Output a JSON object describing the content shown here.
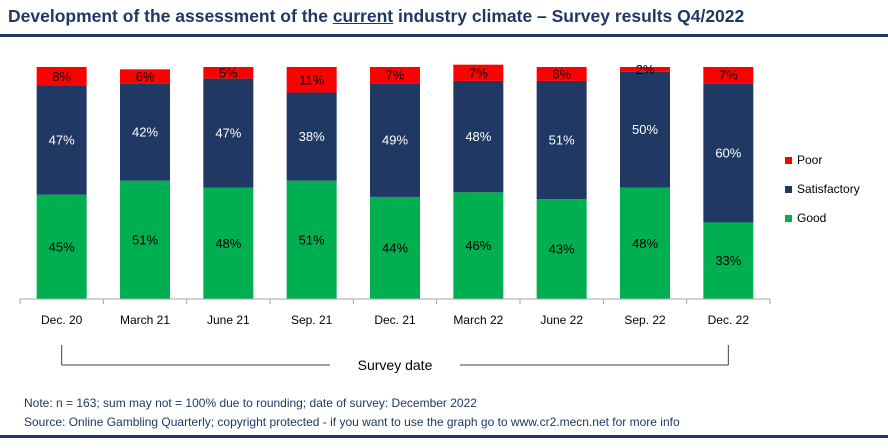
{
  "title": {
    "prefix": "Development of the assessment of the ",
    "underlined": "current",
    "suffix": " industry climate – Survey results Q4/2022"
  },
  "chart_data": {
    "type": "bar",
    "stacked": true,
    "categories": [
      "Dec. 20",
      "March 21",
      "June 21",
      "Sep. 21",
      "Dec. 21",
      "March 22",
      "June 22",
      "Sep. 22",
      "Dec. 22"
    ],
    "series": [
      {
        "name": "Good",
        "color": "#00b050",
        "values": [
          45,
          51,
          48,
          51,
          44,
          46,
          43,
          48,
          33
        ]
      },
      {
        "name": "Satisfactory",
        "color": "#1f3864",
        "values": [
          47,
          42,
          47,
          38,
          49,
          48,
          51,
          50,
          60
        ]
      },
      {
        "name": "Poor",
        "color": "#ff0000",
        "values": [
          8,
          6,
          5,
          11,
          7,
          7,
          6,
          2,
          7
        ]
      }
    ],
    "legend_order": [
      "Poor",
      "Satisfactory",
      "Good"
    ],
    "legend_position": "right",
    "xlabel": "Survey date",
    "ylabel": "",
    "ylim": [
      0,
      100
    ],
    "value_suffix": "%",
    "grid": false
  },
  "notes": {
    "note": "Note: n = 163; sum may not = 100% due to rounding; date of survey: December 2022",
    "source": "Source: Online Gambling Quarterly; copyright protected - if you want to use the graph go to www.cr2.mecn.net for more info"
  },
  "colors": {
    "title": "#1f3864",
    "rule": "#1f3864"
  }
}
